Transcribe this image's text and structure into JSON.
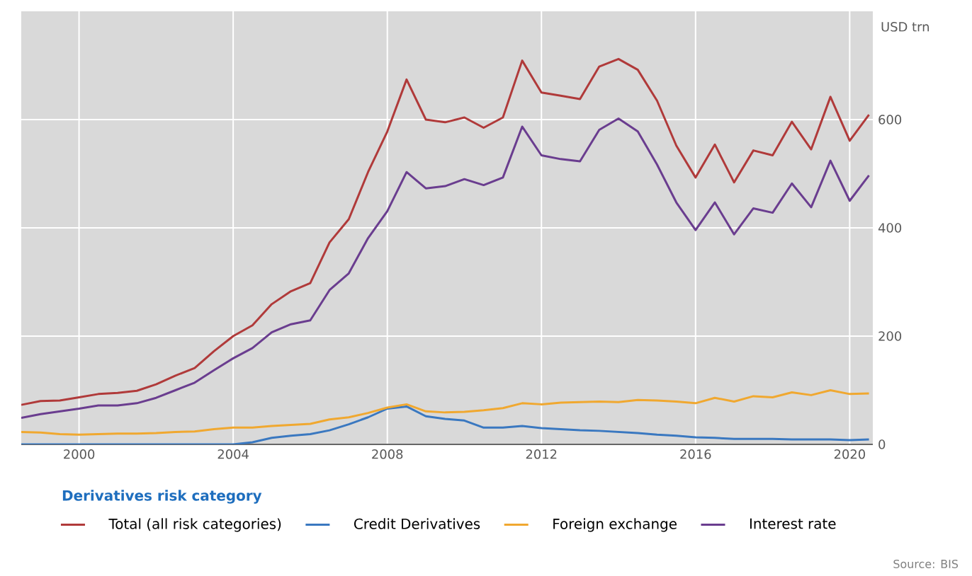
{
  "chart_data": {
    "type": "line",
    "ylabel": "USD trn",
    "legend_title": "Derivatives risk category",
    "annotations": [
      "Source: BIS"
    ],
    "x": [
      1998.5,
      1999.0,
      1999.5,
      2000.0,
      2000.5,
      2001.0,
      2001.5,
      2002.0,
      2002.5,
      2003.0,
      2003.5,
      2004.0,
      2004.5,
      2005.0,
      2005.5,
      2006.0,
      2006.5,
      2007.0,
      2007.5,
      2008.0,
      2008.5,
      2009.0,
      2009.5,
      2010.0,
      2010.5,
      2011.0,
      2011.5,
      2012.0,
      2012.5,
      2013.0,
      2013.5,
      2014.0,
      2014.5,
      2015.0,
      2015.5,
      2016.0,
      2016.5,
      2017.0,
      2017.5,
      2018.0,
      2018.5,
      2019.0,
      2019.5,
      2020.0,
      2020.5
    ],
    "series": [
      {
        "name": "Total (all risk categories)",
        "color": "#b03a3a",
        "values": [
          73,
          80,
          81,
          87,
          93,
          95,
          99,
          111,
          127,
          141,
          172,
          200,
          220,
          259,
          283,
          298,
          373,
          416,
          503,
          578,
          674,
          600,
          595,
          604,
          585,
          604,
          709,
          650,
          644,
          638,
          698,
          712,
          692,
          635,
          552,
          493,
          554,
          484,
          543,
          534,
          596,
          545,
          642,
          561,
          609
        ]
      },
      {
        "name": "Credit Derivatives",
        "color": "#3a78c0",
        "values": [
          0,
          0,
          0,
          0,
          0,
          0,
          0,
          0,
          0,
          0,
          0,
          0,
          4,
          12,
          16,
          19,
          26,
          37,
          50,
          66,
          70,
          52,
          47,
          44,
          31,
          31,
          34,
          30,
          28,
          26,
          25,
          23,
          21,
          18,
          16,
          13,
          12,
          10,
          10,
          10,
          9,
          9,
          9,
          8,
          9
        ]
      },
      {
        "name": "Foreign exchange",
        "color": "#f0a830",
        "values": [
          23,
          22,
          19,
          18,
          19,
          20,
          20,
          21,
          23,
          24,
          28,
          31,
          31,
          34,
          36,
          38,
          46,
          50,
          58,
          68,
          74,
          61,
          59,
          60,
          63,
          67,
          76,
          74,
          77,
          78,
          79,
          78,
          82,
          81,
          79,
          76,
          86,
          79,
          89,
          87,
          96,
          91,
          100,
          93,
          94
        ]
      },
      {
        "name": "Interest rate",
        "color": "#6a3d8f",
        "values": [
          49,
          56,
          61,
          66,
          72,
          72,
          76,
          86,
          100,
          114,
          137,
          159,
          178,
          207,
          222,
          229,
          285,
          316,
          381,
          431,
          503,
          473,
          477,
          490,
          479,
          493,
          587,
          534,
          527,
          523,
          581,
          602,
          578,
          517,
          447,
          396,
          447,
          388,
          436,
          428,
          482,
          438,
          524,
          450,
          497
        ]
      }
    ],
    "xlim": [
      1998.5,
      2020.6
    ],
    "xticks": [
      2000,
      2004,
      2008,
      2012,
      2016,
      2020
    ],
    "ylim": [
      0,
      800
    ],
    "yticks": [
      0,
      200,
      400,
      600
    ],
    "grid": true,
    "legend": "bottom",
    "marker": "none",
    "line_style": "solid"
  }
}
